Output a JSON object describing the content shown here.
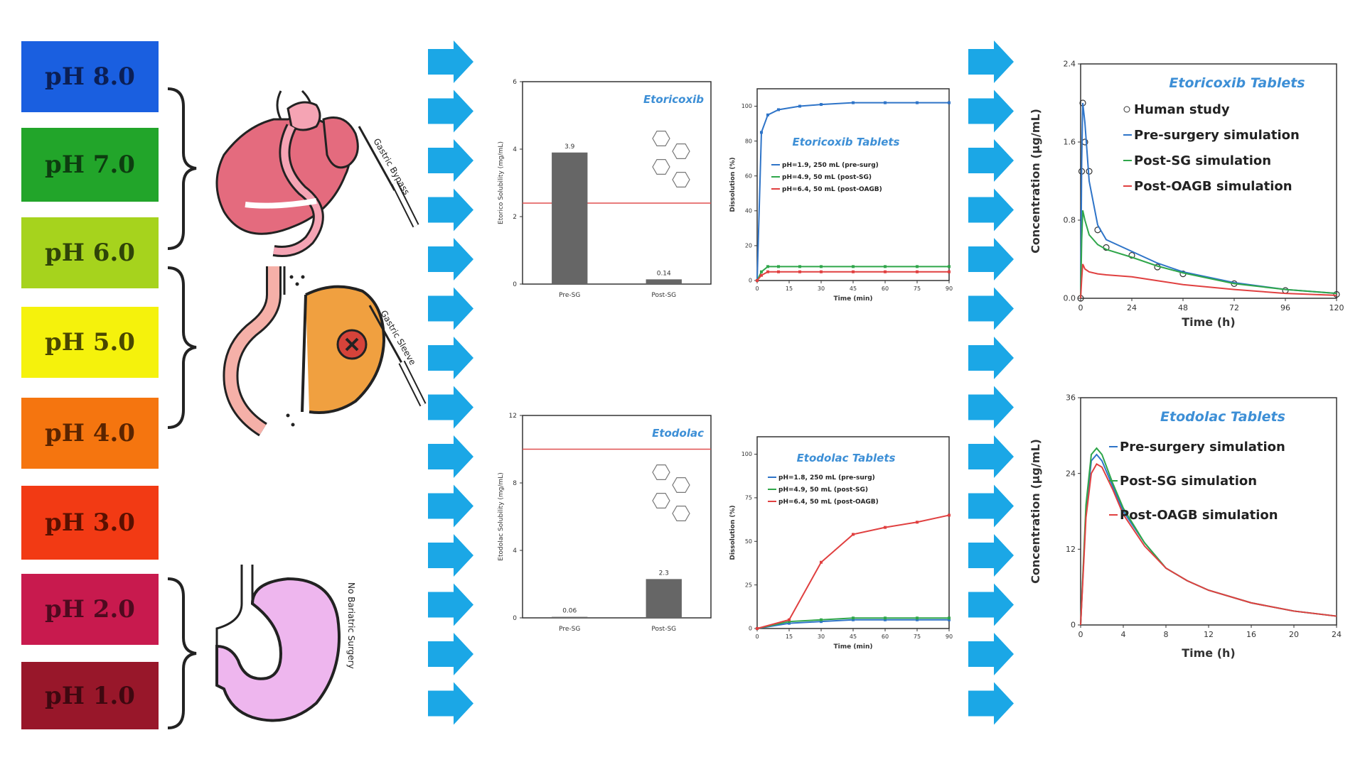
{
  "ph_scale": [
    {
      "label": "pH 8.0",
      "color": "#1a5fe0",
      "text": "#0b1f55"
    },
    {
      "label": "pH 7.0",
      "color": "#22a52a",
      "text": "#0d3d10"
    },
    {
      "label": "pH 6.0",
      "color": "#a6d31d",
      "text": "#2f4408"
    },
    {
      "label": "pH 5.0",
      "color": "#f5f20c",
      "text": "#4a4700"
    },
    {
      "label": "pH 4.0",
      "color": "#f5750f",
      "text": "#5a2400"
    },
    {
      "label": "pH 3.0",
      "color": "#f23a14",
      "text": "#5a1000"
    },
    {
      "label": "pH 2.0",
      "color": "#c81a4e",
      "text": "#4e0a1f"
    },
    {
      "label": "pH 1.0",
      "color": "#98172a",
      "text": "#3e0810"
    }
  ],
  "anatomy": {
    "gastric_bypass_label": "Gastric Bypass",
    "gastric_sleeve_label": "Gastric Sleeve",
    "no_surgery_label": "No Bariatric Surgery"
  },
  "colors": {
    "arrow": "#1ba7e6",
    "bar": "#666666",
    "ref_line": "#e05050",
    "blue": "#2e74c8",
    "green": "#2fa64a",
    "red": "#e04040",
    "title_blue": "#3d8fd6"
  },
  "chart_data": [
    {
      "type": "bar",
      "title": "Etoricoxib",
      "categories": [
        "Pre-SG",
        "Post-SG"
      ],
      "values": [
        3.9,
        0.14
      ],
      "value_labels": [
        "3.9",
        "0.14"
      ],
      "ylabel": "Etorico Solubility (mg/mL)",
      "ylim": [
        0,
        6
      ],
      "yticks": [
        "0",
        "2",
        "4",
        "6"
      ],
      "reference_line": 2.4
    },
    {
      "type": "line",
      "title": "Etoricoxib Tablets",
      "xlabel": "Time (min)",
      "ylabel": "Dissolution (%)",
      "xlim": [
        0,
        90
      ],
      "ylim": [
        0,
        110
      ],
      "xticks": [
        "0",
        "15",
        "30",
        "45",
        "60",
        "75",
        "90"
      ],
      "yticks": [
        "0",
        "20",
        "40",
        "60",
        "80",
        "100"
      ],
      "series": [
        {
          "name": "pH=1.9, 250 mL (pre-surg)",
          "x": [
            0,
            2,
            5,
            10,
            20,
            30,
            45,
            60,
            75,
            90
          ],
          "y": [
            0,
            85,
            95,
            98,
            100,
            101,
            102,
            102,
            102,
            102
          ]
        },
        {
          "name": "pH=4.9, 50 mL (post-SG)",
          "x": [
            0,
            2,
            5,
            10,
            20,
            30,
            45,
            60,
            75,
            90
          ],
          "y": [
            0,
            5,
            8,
            8,
            8,
            8,
            8,
            8,
            8,
            8
          ]
        },
        {
          "name": "pH=6.4, 50 mL (post-OAGB)",
          "x": [
            0,
            2,
            5,
            10,
            20,
            30,
            45,
            60,
            75,
            90
          ],
          "y": [
            0,
            3,
            5,
            5,
            5,
            5,
            5,
            5,
            5,
            5
          ]
        }
      ]
    },
    {
      "type": "line",
      "title": "Etoricoxib Tablets",
      "xlabel": "Time (h)",
      "ylabel": "Concentration (µg/mL)",
      "xlim": [
        0,
        120
      ],
      "ylim": [
        0,
        2.4
      ],
      "xticks": [
        "0",
        "24",
        "48",
        "72",
        "96",
        "120"
      ],
      "yticks": [
        "0.0",
        "0.8",
        "1.6",
        "2.4"
      ],
      "series": [
        {
          "name": "Human study",
          "x": [
            0,
            0.5,
            1,
            2,
            4,
            8,
            12,
            24,
            36,
            48,
            72,
            96,
            120
          ],
          "y": [
            0,
            1.3,
            2.0,
            1.6,
            1.3,
            0.7,
            0.52,
            0.44,
            0.32,
            0.25,
            0.15,
            0.08,
            0.04
          ]
        },
        {
          "name": "Pre-surgery simulation",
          "x": [
            0,
            0.5,
            1,
            2,
            4,
            8,
            12,
            24,
            36,
            48,
            72,
            96,
            120
          ],
          "y": [
            0,
            1.4,
            2.0,
            1.8,
            1.2,
            0.75,
            0.6,
            0.48,
            0.36,
            0.27,
            0.16,
            0.09,
            0.05
          ]
        },
        {
          "name": "Post-SG simulation",
          "x": [
            0,
            0.5,
            1,
            2,
            4,
            8,
            12,
            24,
            36,
            48,
            72,
            96,
            120
          ],
          "y": [
            0,
            0.6,
            0.9,
            0.8,
            0.65,
            0.55,
            0.5,
            0.42,
            0.33,
            0.26,
            0.15,
            0.09,
            0.05
          ]
        },
        {
          "name": "Post-OAGB simulation",
          "x": [
            0,
            0.5,
            1,
            2,
            4,
            8,
            12,
            24,
            36,
            48,
            72,
            96,
            120
          ],
          "y": [
            0,
            0.2,
            0.35,
            0.3,
            0.27,
            0.25,
            0.24,
            0.22,
            0.18,
            0.14,
            0.09,
            0.05,
            0.03
          ]
        }
      ]
    },
    {
      "type": "bar",
      "title": "Etodolac",
      "categories": [
        "Pre-SG",
        "Post-SG"
      ],
      "values": [
        0.06,
        2.3
      ],
      "value_labels": [
        "0.06",
        "2.3"
      ],
      "ylabel": "Etodolac Solubility (mg/mL)",
      "ylim": [
        0,
        12
      ],
      "yticks": [
        "0",
        "4",
        "8",
        "12"
      ],
      "reference_line": 10
    },
    {
      "type": "line",
      "title": "Etodolac Tablets",
      "xlabel": "Time (min)",
      "ylabel": "Dissolution (%)",
      "xlim": [
        0,
        90
      ],
      "ylim": [
        0,
        110
      ],
      "xticks": [
        "0",
        "15",
        "30",
        "45",
        "60",
        "75",
        "90"
      ],
      "yticks": [
        "0",
        "25",
        "50",
        "75",
        "100"
      ],
      "series": [
        {
          "name": "pH=1.8, 250 mL (pre-surg)",
          "x": [
            0,
            15,
            30,
            45,
            60,
            75,
            90
          ],
          "y": [
            0,
            3,
            4,
            5,
            5,
            5,
            5
          ]
        },
        {
          "name": "pH=4.9, 50 mL (post-SG)",
          "x": [
            0,
            15,
            30,
            45,
            60,
            75,
            90
          ],
          "y": [
            0,
            4,
            5,
            6,
            6,
            6,
            6
          ]
        },
        {
          "name": "pH=6.4, 50 mL (post-OAGB)",
          "x": [
            0,
            15,
            30,
            45,
            60,
            75,
            90
          ],
          "y": [
            0,
            5,
            38,
            54,
            58,
            61,
            65
          ]
        }
      ]
    },
    {
      "type": "line",
      "title": "Etodolac Tablets",
      "xlabel": "Time (h)",
      "ylabel": "Concentration (µg/mL)",
      "xlim": [
        0,
        24
      ],
      "ylim": [
        0,
        36
      ],
      "xticks": [
        "0",
        "4",
        "8",
        "12",
        "16",
        "20",
        "24"
      ],
      "yticks": [
        "0",
        "12",
        "24",
        "36"
      ],
      "series": [
        {
          "name": "Pre-surgery simulation",
          "x": [
            0,
            0.5,
            1,
            1.5,
            2,
            3,
            4,
            6,
            8,
            10,
            12,
            16,
            20,
            24
          ],
          "y": [
            0,
            18,
            26,
            27,
            26,
            22,
            18,
            13,
            9,
            7,
            5.5,
            3.5,
            2.2,
            1.4
          ]
        },
        {
          "name": "Post-SG simulation",
          "x": [
            0,
            0.5,
            1,
            1.5,
            2,
            3,
            4,
            6,
            8,
            10,
            12,
            16,
            20,
            24
          ],
          "y": [
            0,
            19,
            27,
            28,
            27,
            22.5,
            18.5,
            13,
            9,
            7,
            5.5,
            3.5,
            2.2,
            1.4
          ]
        },
        {
          "name": "Post-OAGB simulation",
          "x": [
            0,
            0.5,
            1,
            1.5,
            2,
            3,
            4,
            6,
            8,
            10,
            12,
            16,
            20,
            24
          ],
          "y": [
            0,
            17,
            24,
            25.5,
            25,
            21.5,
            17.5,
            12.5,
            9,
            7,
            5.5,
            3.5,
            2.2,
            1.4
          ]
        }
      ]
    }
  ]
}
